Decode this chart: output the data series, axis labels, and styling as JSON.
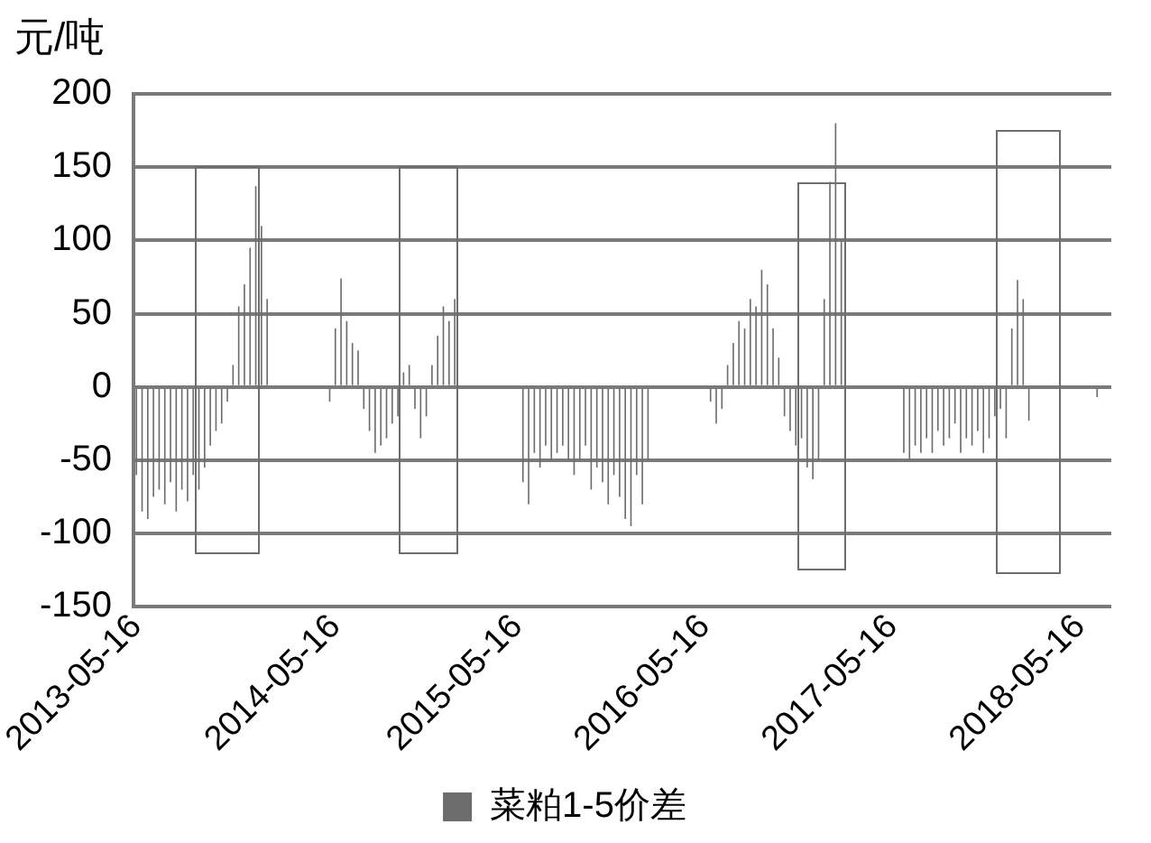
{
  "chart_data": {
    "type": "bar",
    "ylabel": "元/吨",
    "categories": [
      "2013-05-16",
      null,
      null,
      null,
      null,
      null,
      null,
      null,
      null,
      null,
      null,
      null,
      null,
      null,
      null,
      null,
      null,
      null,
      null,
      null,
      null,
      null,
      null,
      null,
      null,
      null,
      null,
      null,
      null,
      null,
      null,
      null,
      null,
      null,
      null,
      "2014-05-16",
      null,
      null,
      null,
      null,
      null,
      null,
      null,
      null,
      null,
      null,
      null,
      null,
      null,
      null,
      null,
      null,
      null,
      null,
      null,
      null,
      null,
      null,
      null,
      null,
      null,
      null,
      null,
      null,
      null,
      null,
      null,
      "2015-05-16",
      null,
      null,
      null,
      null,
      null,
      null,
      null,
      null,
      null,
      null,
      null,
      null,
      null,
      null,
      null,
      null,
      null,
      null,
      null,
      null,
      null,
      null,
      null,
      null,
      null,
      null,
      null,
      null,
      null,
      null,
      null,
      null,
      "2016-05-16",
      null,
      null,
      null,
      null,
      null,
      null,
      null,
      null,
      null,
      null,
      null,
      null,
      null,
      null,
      null,
      null,
      null,
      null,
      null,
      null,
      null,
      null,
      null,
      null,
      null,
      null,
      null,
      null,
      null,
      null,
      null,
      null,
      "2017-05-16",
      null,
      null,
      null,
      null,
      null,
      null,
      null,
      null,
      null,
      null,
      null,
      null,
      null,
      null,
      null,
      null,
      null,
      null,
      null,
      null,
      null,
      null,
      null,
      null,
      null,
      null,
      null,
      null,
      null,
      null,
      null,
      null,
      "2018-05-16",
      null,
      null,
      null,
      null,
      null
    ],
    "series": [
      {
        "name": "菜粕1-5价差",
        "color": "#6d6d6d",
        "values": [
          -60,
          -85,
          -90,
          -75,
          -70,
          -80,
          -65,
          -85,
          -70,
          -78,
          -60,
          -70,
          -55,
          -40,
          -30,
          -25,
          -10,
          15,
          55,
          70,
          95,
          137,
          110,
          60,
          null,
          null,
          null,
          null,
          null,
          null,
          null,
          null,
          null,
          null,
          -10,
          40,
          74,
          45,
          30,
          25,
          -15,
          -30,
          -45,
          -40,
          -35,
          -25,
          -20,
          10,
          15,
          -15,
          -35,
          -20,
          15,
          35,
          55,
          45,
          60,
          null,
          null,
          null,
          null,
          null,
          null,
          null,
          null,
          null,
          null,
          null,
          -65,
          -80,
          -45,
          -55,
          -40,
          -50,
          -45,
          -40,
          -50,
          -60,
          -50,
          -40,
          -70,
          -55,
          -65,
          -80,
          -60,
          -75,
          -90,
          -95,
          -60,
          -80,
          -50,
          null,
          null,
          null,
          null,
          null,
          null,
          null,
          null,
          null,
          null,
          -10,
          -25,
          -15,
          15,
          30,
          45,
          40,
          60,
          55,
          80,
          70,
          40,
          20,
          -20,
          -30,
          -40,
          -35,
          -55,
          -63,
          -50,
          60,
          140,
          180,
          100,
          null,
          null,
          null,
          null,
          null,
          null,
          null,
          null,
          null,
          null,
          -45,
          -50,
          -40,
          -45,
          -35,
          -45,
          -30,
          -40,
          -35,
          -25,
          -45,
          -35,
          -40,
          -30,
          -45,
          -35,
          -20,
          -15,
          -35,
          40,
          73,
          60,
          -23,
          null,
          null,
          null,
          null,
          null,
          null,
          null,
          null,
          null,
          null,
          null,
          -7,
          null,
          null
        ]
      }
    ],
    "ylim": [
      -150,
      200
    ],
    "yticks": [
      -150,
      -100,
      -50,
      0,
      50,
      100,
      150,
      200
    ],
    "grid": "y",
    "legend": "bottom"
  }
}
